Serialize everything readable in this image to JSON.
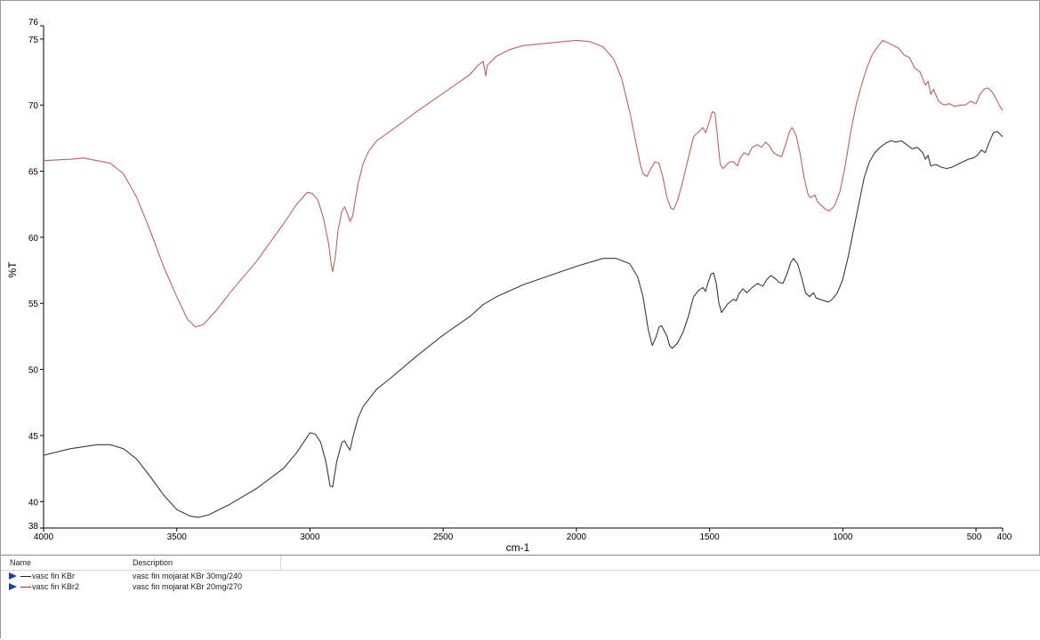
{
  "chart_data": {
    "type": "line",
    "xlabel": "cm-1",
    "ylabel": "%T",
    "xlim": [
      4000,
      400
    ],
    "ylim": [
      38,
      76
    ],
    "x_ticks": [
      {
        "value": 4000,
        "label": "4000"
      },
      {
        "value": 3500,
        "label": "3500"
      },
      {
        "value": 3000,
        "label": "3000"
      },
      {
        "value": 2500,
        "label": "2500"
      },
      {
        "value": 2000,
        "label": "2000"
      },
      {
        "value": 1500,
        "label": "1500"
      },
      {
        "value": 1000,
        "label": "1000"
      },
      {
        "value": 500,
        "label": "500"
      },
      {
        "value": 400,
        "label": "400"
      }
    ],
    "y_ticks": [
      {
        "value": 38,
        "label": "38"
      },
      {
        "value": 40,
        "label": "40"
      },
      {
        "value": 45,
        "label": "45"
      },
      {
        "value": 50,
        "label": "50"
      },
      {
        "value": 55,
        "label": "55"
      },
      {
        "value": 60,
        "label": "60"
      },
      {
        "value": 65,
        "label": "65"
      },
      {
        "value": 70,
        "label": "70"
      },
      {
        "value": 75,
        "label": "75"
      },
      {
        "value": 76,
        "label": "76"
      }
    ],
    "grid": false,
    "series": [
      {
        "name": "vasc fin KBr",
        "color": "#3a3a3a",
        "points": [
          [
            4000,
            43.5
          ],
          [
            3900,
            44.0
          ],
          [
            3800,
            44.3
          ],
          [
            3750,
            44.3
          ],
          [
            3700,
            44.0
          ],
          [
            3650,
            43.2
          ],
          [
            3600,
            41.9
          ],
          [
            3550,
            40.5
          ],
          [
            3500,
            39.4
          ],
          [
            3450,
            38.9
          ],
          [
            3420,
            38.8
          ],
          [
            3380,
            39.0
          ],
          [
            3300,
            39.8
          ],
          [
            3200,
            41.0
          ],
          [
            3100,
            42.5
          ],
          [
            3050,
            43.7
          ],
          [
            3000,
            45.2
          ],
          [
            2980,
            45.1
          ],
          [
            2960,
            44.5
          ],
          [
            2940,
            43.0
          ],
          [
            2925,
            41.2
          ],
          [
            2915,
            41.1
          ],
          [
            2900,
            43.0
          ],
          [
            2880,
            44.5
          ],
          [
            2870,
            44.6
          ],
          [
            2860,
            44.2
          ],
          [
            2850,
            43.9
          ],
          [
            2840,
            44.8
          ],
          [
            2820,
            46.3
          ],
          [
            2800,
            47.2
          ],
          [
            2750,
            48.5
          ],
          [
            2700,
            49.3
          ],
          [
            2600,
            51.0
          ],
          [
            2500,
            52.6
          ],
          [
            2400,
            54.0
          ],
          [
            2350,
            54.9
          ],
          [
            2300,
            55.5
          ],
          [
            2200,
            56.4
          ],
          [
            2100,
            57.1
          ],
          [
            2000,
            57.8
          ],
          [
            1900,
            58.4
          ],
          [
            1850,
            58.4
          ],
          [
            1800,
            58.0
          ],
          [
            1770,
            57.0
          ],
          [
            1750,
            55.5
          ],
          [
            1730,
            53.0
          ],
          [
            1715,
            51.8
          ],
          [
            1700,
            52.5
          ],
          [
            1690,
            53.2
          ],
          [
            1680,
            53.3
          ],
          [
            1660,
            52.5
          ],
          [
            1650,
            51.8
          ],
          [
            1640,
            51.6
          ],
          [
            1620,
            52.0
          ],
          [
            1600,
            52.8
          ],
          [
            1580,
            54.0
          ],
          [
            1560,
            55.5
          ],
          [
            1540,
            56.0
          ],
          [
            1525,
            56.2
          ],
          [
            1515,
            55.9
          ],
          [
            1510,
            56.3
          ],
          [
            1495,
            57.2
          ],
          [
            1485,
            57.3
          ],
          [
            1475,
            56.5
          ],
          [
            1465,
            55.0
          ],
          [
            1455,
            54.3
          ],
          [
            1445,
            54.6
          ],
          [
            1430,
            55.0
          ],
          [
            1410,
            55.3
          ],
          [
            1400,
            55.2
          ],
          [
            1390,
            55.7
          ],
          [
            1375,
            56.1
          ],
          [
            1360,
            55.8
          ],
          [
            1340,
            56.2
          ],
          [
            1320,
            56.5
          ],
          [
            1300,
            56.3
          ],
          [
            1285,
            56.8
          ],
          [
            1270,
            57.1
          ],
          [
            1255,
            56.9
          ],
          [
            1240,
            56.6
          ],
          [
            1225,
            56.5
          ],
          [
            1210,
            57.2
          ],
          [
            1195,
            58.1
          ],
          [
            1185,
            58.4
          ],
          [
            1170,
            58.0
          ],
          [
            1155,
            57.0
          ],
          [
            1140,
            55.8
          ],
          [
            1125,
            55.5
          ],
          [
            1110,
            55.8
          ],
          [
            1100,
            55.4
          ],
          [
            1085,
            55.3
          ],
          [
            1070,
            55.2
          ],
          [
            1055,
            55.1
          ],
          [
            1040,
            55.3
          ],
          [
            1020,
            55.8
          ],
          [
            1000,
            56.8
          ],
          [
            980,
            58.5
          ],
          [
            960,
            60.5
          ],
          [
            940,
            62.5
          ],
          [
            920,
            64.5
          ],
          [
            900,
            65.7
          ],
          [
            880,
            66.4
          ],
          [
            860,
            66.8
          ],
          [
            840,
            67.1
          ],
          [
            820,
            67.3
          ],
          [
            800,
            67.2
          ],
          [
            780,
            67.3
          ],
          [
            760,
            67.0
          ],
          [
            740,
            66.7
          ],
          [
            720,
            66.8
          ],
          [
            700,
            66.4
          ],
          [
            690,
            65.9
          ],
          [
            680,
            66.2
          ],
          [
            670,
            65.4
          ],
          [
            650,
            65.5
          ],
          [
            630,
            65.3
          ],
          [
            610,
            65.2
          ],
          [
            590,
            65.3
          ],
          [
            570,
            65.5
          ],
          [
            550,
            65.7
          ],
          [
            530,
            65.9
          ],
          [
            510,
            66.0
          ],
          [
            495,
            66.2
          ],
          [
            480,
            66.6
          ],
          [
            465,
            66.4
          ],
          [
            450,
            67.2
          ],
          [
            435,
            67.9
          ],
          [
            420,
            68.0
          ],
          [
            410,
            67.8
          ],
          [
            400,
            67.6
          ]
        ]
      },
      {
        "name": "vasc fin KBr2",
        "color": "#c06060",
        "points": [
          [
            4000,
            65.8
          ],
          [
            3900,
            65.9
          ],
          [
            3850,
            66.0
          ],
          [
            3800,
            65.8
          ],
          [
            3750,
            65.6
          ],
          [
            3700,
            64.8
          ],
          [
            3650,
            63.0
          ],
          [
            3600,
            60.5
          ],
          [
            3550,
            57.8
          ],
          [
            3500,
            55.5
          ],
          [
            3460,
            53.8
          ],
          [
            3430,
            53.2
          ],
          [
            3400,
            53.4
          ],
          [
            3350,
            54.5
          ],
          [
            3300,
            55.8
          ],
          [
            3200,
            58.2
          ],
          [
            3100,
            61.0
          ],
          [
            3050,
            62.5
          ],
          [
            3010,
            63.4
          ],
          [
            2990,
            63.3
          ],
          [
            2970,
            62.8
          ],
          [
            2950,
            61.5
          ],
          [
            2930,
            59.5
          ],
          [
            2920,
            57.9
          ],
          [
            2915,
            57.4
          ],
          [
            2905,
            58.5
          ],
          [
            2895,
            60.5
          ],
          [
            2880,
            62.0
          ],
          [
            2870,
            62.3
          ],
          [
            2860,
            61.8
          ],
          [
            2850,
            61.2
          ],
          [
            2840,
            61.6
          ],
          [
            2820,
            64.0
          ],
          [
            2800,
            65.6
          ],
          [
            2780,
            66.5
          ],
          [
            2750,
            67.3
          ],
          [
            2700,
            68.0
          ],
          [
            2600,
            69.5
          ],
          [
            2500,
            70.9
          ],
          [
            2400,
            72.3
          ],
          [
            2370,
            73.0
          ],
          [
            2350,
            73.3
          ],
          [
            2340,
            72.2
          ],
          [
            2335,
            73.0
          ],
          [
            2300,
            73.7
          ],
          [
            2250,
            74.2
          ],
          [
            2200,
            74.5
          ],
          [
            2100,
            74.7
          ],
          [
            2000,
            74.9
          ],
          [
            1950,
            74.8
          ],
          [
            1900,
            74.4
          ],
          [
            1860,
            73.5
          ],
          [
            1830,
            72.0
          ],
          [
            1800,
            69.5
          ],
          [
            1780,
            67.5
          ],
          [
            1760,
            65.5
          ],
          [
            1750,
            64.8
          ],
          [
            1735,
            64.6
          ],
          [
            1720,
            65.2
          ],
          [
            1705,
            65.7
          ],
          [
            1690,
            65.6
          ],
          [
            1675,
            64.5
          ],
          [
            1660,
            63.0
          ],
          [
            1645,
            62.2
          ],
          [
            1635,
            62.1
          ],
          [
            1620,
            62.8
          ],
          [
            1600,
            64.3
          ],
          [
            1580,
            66.0
          ],
          [
            1560,
            67.6
          ],
          [
            1540,
            68.0
          ],
          [
            1525,
            68.3
          ],
          [
            1515,
            67.9
          ],
          [
            1500,
            68.8
          ],
          [
            1490,
            69.5
          ],
          [
            1480,
            69.4
          ],
          [
            1470,
            67.5
          ],
          [
            1460,
            65.5
          ],
          [
            1450,
            65.2
          ],
          [
            1440,
            65.4
          ],
          [
            1425,
            65.7
          ],
          [
            1410,
            65.7
          ],
          [
            1395,
            65.4
          ],
          [
            1385,
            66.0
          ],
          [
            1370,
            66.4
          ],
          [
            1355,
            66.2
          ],
          [
            1340,
            66.8
          ],
          [
            1320,
            67.0
          ],
          [
            1305,
            66.8
          ],
          [
            1290,
            67.2
          ],
          [
            1275,
            66.9
          ],
          [
            1260,
            66.4
          ],
          [
            1245,
            66.2
          ],
          [
            1230,
            66.1
          ],
          [
            1215,
            67.0
          ],
          [
            1200,
            68.0
          ],
          [
            1190,
            68.3
          ],
          [
            1175,
            67.7
          ],
          [
            1160,
            66.3
          ],
          [
            1145,
            64.5
          ],
          [
            1130,
            63.2
          ],
          [
            1120,
            63.0
          ],
          [
            1105,
            63.2
          ],
          [
            1095,
            62.7
          ],
          [
            1080,
            62.4
          ],
          [
            1065,
            62.1
          ],
          [
            1050,
            62.0
          ],
          [
            1030,
            62.4
          ],
          [
            1010,
            63.5
          ],
          [
            990,
            65.5
          ],
          [
            970,
            68.0
          ],
          [
            950,
            70.0
          ],
          [
            930,
            71.5
          ],
          [
            910,
            72.8
          ],
          [
            890,
            73.8
          ],
          [
            870,
            74.4
          ],
          [
            850,
            74.9
          ],
          [
            830,
            74.7
          ],
          [
            810,
            74.5
          ],
          [
            790,
            74.3
          ],
          [
            770,
            73.8
          ],
          [
            750,
            73.6
          ],
          [
            730,
            72.8
          ],
          [
            710,
            72.5
          ],
          [
            690,
            71.5
          ],
          [
            680,
            71.8
          ],
          [
            670,
            70.8
          ],
          [
            660,
            71.2
          ],
          [
            640,
            70.3
          ],
          [
            620,
            70.0
          ],
          [
            600,
            70.1
          ],
          [
            580,
            69.9
          ],
          [
            560,
            70.0
          ],
          [
            540,
            70.0
          ],
          [
            520,
            70.3
          ],
          [
            500,
            70.1
          ],
          [
            485,
            70.8
          ],
          [
            470,
            71.2
          ],
          [
            455,
            71.3
          ],
          [
            440,
            71.0
          ],
          [
            425,
            70.5
          ],
          [
            410,
            69.9
          ],
          [
            400,
            69.6
          ]
        ]
      }
    ]
  },
  "legend": {
    "header_name": "Name",
    "header_description": "Description",
    "rows": [
      {
        "name": "vasc fin KBr",
        "description": "vasc fin mojarat KBr 30mg/240",
        "color": "#1e1e1e"
      },
      {
        "name": "vasc fin KBr2",
        "description": "vasc fin mojarat KBr 20mg/270",
        "color": "#d01818"
      }
    ]
  }
}
